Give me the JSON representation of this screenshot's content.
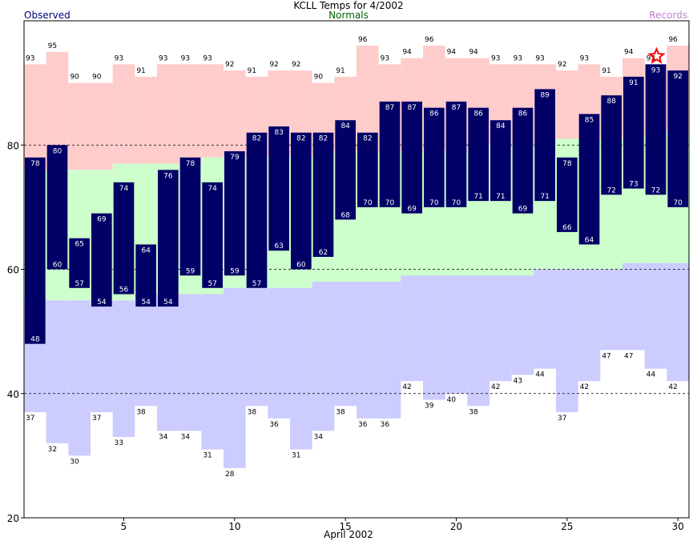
{
  "chart_data": {
    "type": "bar",
    "title": "KCLL Temps for 4/2002",
    "xlabel": "April 2002",
    "legend": {
      "observed": "Observed",
      "normals": "Normals",
      "records": "Records"
    },
    "x": [
      1,
      2,
      3,
      4,
      5,
      6,
      7,
      8,
      9,
      10,
      11,
      12,
      13,
      14,
      15,
      16,
      17,
      18,
      19,
      20,
      21,
      22,
      23,
      24,
      25,
      26,
      27,
      28,
      29,
      30
    ],
    "ylim": [
      20,
      100
    ],
    "xlim": [
      0.5,
      30.5
    ],
    "yticks": [
      20,
      40,
      60,
      80
    ],
    "xticks": [
      5,
      10,
      15,
      20,
      25,
      30
    ],
    "gridlines": [
      40,
      60,
      80
    ],
    "series": [
      {
        "name": "Observed",
        "key": "obs_high",
        "values": [
          78,
          80,
          65,
          69,
          74,
          64,
          76,
          78,
          74,
          79,
          82,
          83,
          82,
          82,
          84,
          82,
          87,
          87,
          86,
          87,
          86,
          84,
          86,
          89,
          78,
          85,
          88,
          91,
          93,
          92
        ]
      },
      {
        "key": "obs_low",
        "values": [
          48,
          60,
          57,
          54,
          56,
          54,
          54,
          59,
          57,
          59,
          57,
          63,
          60,
          62,
          68,
          70,
          70,
          69,
          70,
          70,
          71,
          71,
          69,
          71,
          66,
          64,
          72,
          73,
          72,
          70
        ]
      },
      {
        "key": "normal_high",
        "values": [
          76,
          76,
          76,
          76,
          77,
          77,
          77,
          77,
          78,
          78,
          78,
          78,
          78,
          78,
          79,
          79,
          79,
          79,
          79,
          79,
          80,
          80,
          80,
          80,
          81,
          81,
          81,
          81,
          82,
          82
        ]
      },
      {
        "key": "normal_low",
        "values": [
          55,
          55,
          55,
          55,
          55,
          56,
          56,
          56,
          56,
          57,
          57,
          57,
          57,
          58,
          58,
          58,
          58,
          59,
          59,
          59,
          59,
          59,
          59,
          60,
          60,
          60,
          60,
          61,
          61,
          61
        ]
      },
      {
        "name": "Records",
        "key": "record_high",
        "values": [
          93,
          95,
          90,
          90,
          93,
          91,
          93,
          93,
          93,
          92,
          91,
          92,
          92,
          90,
          91,
          96,
          93,
          94,
          96,
          94,
          94,
          93,
          93,
          93,
          92,
          93,
          91,
          94,
          93,
          96
        ]
      },
      {
        "key": "record_low",
        "values": [
          37,
          32,
          30,
          37,
          33,
          38,
          34,
          34,
          31,
          28,
          38,
          36,
          31,
          34,
          38,
          36,
          36,
          42,
          39,
          40,
          38,
          42,
          43,
          44,
          37,
          42,
          47,
          47,
          44,
          42
        ]
      }
    ],
    "record_set_day": 29,
    "colors": {
      "observed_bar": "#000066",
      "record_high_fill": "#ffcccc",
      "normal_fill": "#ccffcc",
      "record_low_fill": "#ccccff",
      "star": "#ff0000",
      "observed_label": "#000080",
      "normals_label": "#006400",
      "records_label": "#c080d0"
    }
  }
}
